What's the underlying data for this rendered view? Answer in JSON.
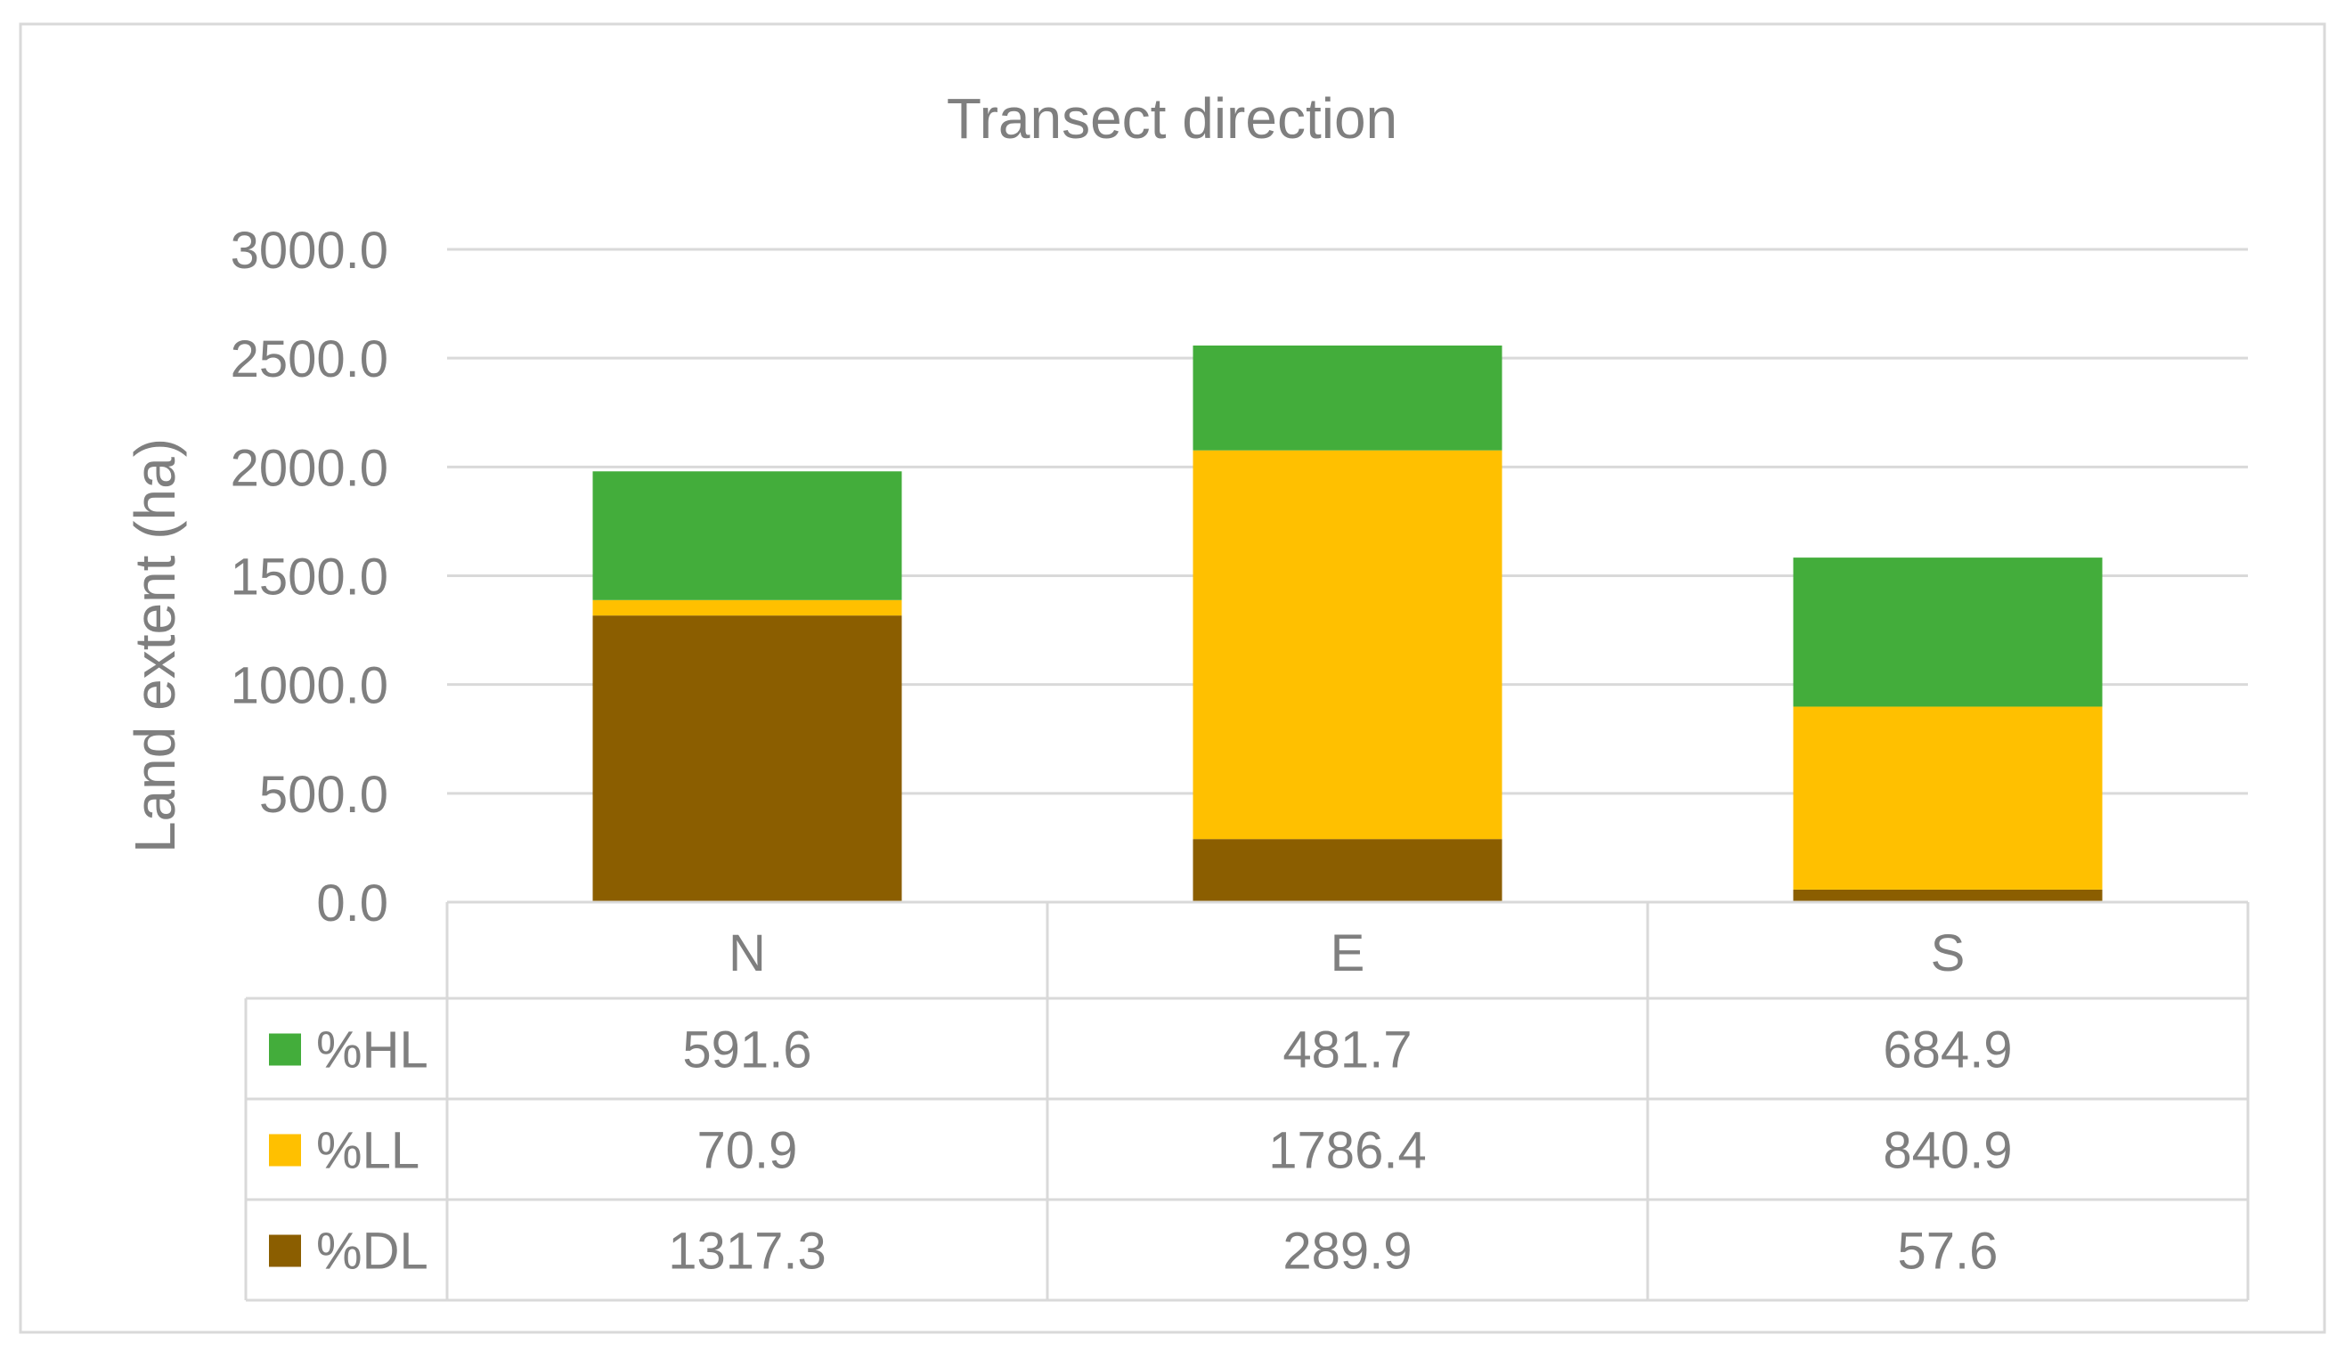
{
  "chart_data": {
    "type": "bar",
    "stacked": true,
    "title": "Transect direction",
    "xlabel": "",
    "ylabel": "Land extent (ha)",
    "categories": [
      "N",
      "E",
      "S"
    ],
    "ylim": [
      0,
      3000
    ],
    "yticks": [
      "0.0",
      "500.0",
      "1000.0",
      "1500.0",
      "2000.0",
      "2500.0",
      "3000.0"
    ],
    "grid": true,
    "legend_placement": "data-table-left",
    "data_table": true,
    "series": [
      {
        "name": "%HL",
        "color": "#43ad3b",
        "values": [
          591.6,
          481.7,
          684.9
        ],
        "labels": [
          "591.6",
          "481.7",
          "684.9"
        ]
      },
      {
        "name": "%LL",
        "color": "#ffc000",
        "values": [
          70.9,
          1786.4,
          840.9
        ],
        "labels": [
          "70.9",
          "1786.4",
          "840.9"
        ]
      },
      {
        "name": "%DL",
        "color": "#8b5e00",
        "values": [
          1317.3,
          289.9,
          57.6
        ],
        "labels": [
          "1317.3",
          "289.9",
          "57.6"
        ]
      }
    ],
    "stack_order_bottom_to_top": [
      "%DL",
      "%LL",
      "%HL"
    ]
  }
}
